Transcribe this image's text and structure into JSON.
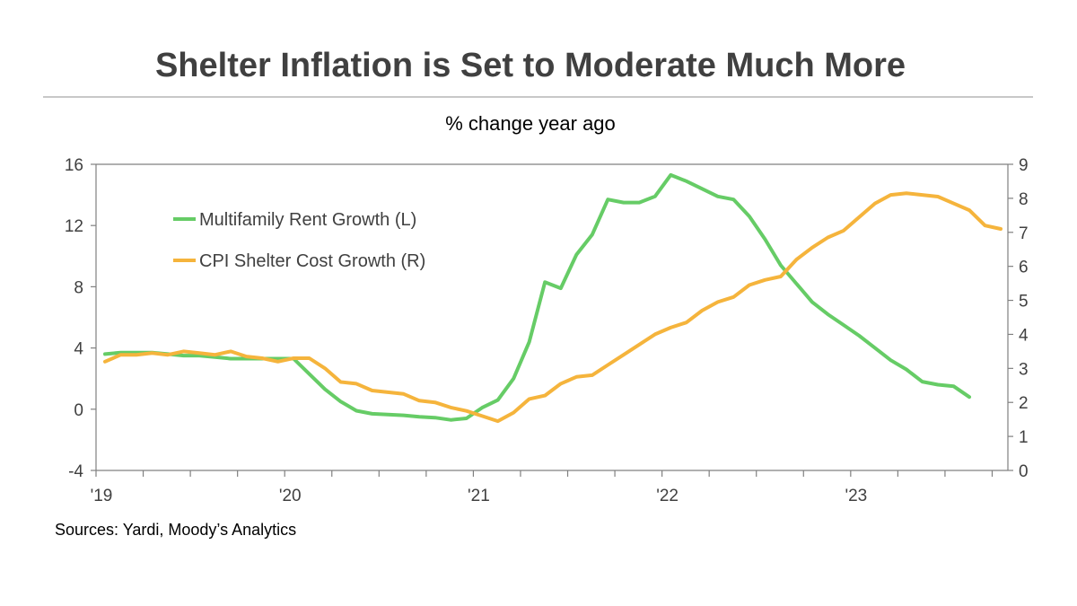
{
  "title": "Shelter Inflation is Set to Moderate Much More",
  "subtitle": "% change year ago",
  "source": "Sources: Yardi, Moody’s Analytics",
  "colors": {
    "rent": "#66cc66",
    "cpi": "#f5b43c",
    "axis": "#808080",
    "text": "#404040"
  },
  "chart_data": {
    "type": "line",
    "title": "Shelter Inflation is Set to Moderate Much More",
    "subtitle": "% change year ago",
    "x_start": "2019-01",
    "x_ticks": [
      "'19",
      "'20",
      "'21",
      "'22",
      "'23"
    ],
    "x_tick_months": [
      0,
      12,
      24,
      36,
      48
    ],
    "y_left": {
      "min": -4,
      "max": 16,
      "ticks": [
        -4,
        0,
        4,
        8,
        12,
        16
      ]
    },
    "y_right": {
      "min": 0,
      "max": 9,
      "ticks": [
        0,
        1,
        2,
        3,
        4,
        5,
        6,
        7,
        8,
        9
      ]
    },
    "legend": {
      "placement": "top-left"
    },
    "series": [
      {
        "name": "Multifamily Rent Growth (L)",
        "axis": "left",
        "values": [
          3.6,
          3.7,
          3.7,
          3.7,
          3.6,
          3.5,
          3.5,
          3.4,
          3.3,
          3.3,
          3.3,
          3.3,
          3.3,
          2.3,
          1.3,
          0.5,
          -0.1,
          -0.3,
          -0.35,
          -0.4,
          -0.5,
          -0.55,
          -0.7,
          -0.6,
          0.1,
          0.6,
          2.0,
          4.4,
          8.3,
          7.9,
          10.1,
          11.4,
          13.7,
          13.5,
          13.5,
          13.9,
          15.3,
          14.9,
          14.4,
          13.9,
          13.7,
          12.6,
          11.1,
          9.4,
          8.2,
          7.0,
          6.2,
          5.5,
          4.8,
          4.0,
          3.2,
          2.6,
          1.8,
          1.6,
          1.5,
          0.8
        ]
      },
      {
        "name": "CPI Shelter Cost Growth (R)",
        "axis": "right",
        "values": [
          3.2,
          3.4,
          3.4,
          3.45,
          3.4,
          3.5,
          3.45,
          3.4,
          3.5,
          3.35,
          3.3,
          3.2,
          3.3,
          3.3,
          3.0,
          2.6,
          2.55,
          2.35,
          2.3,
          2.25,
          2.05,
          2.0,
          1.85,
          1.75,
          1.6,
          1.45,
          1.7,
          2.1,
          2.2,
          2.55,
          2.75,
          2.8,
          3.1,
          3.4,
          3.7,
          4.0,
          4.2,
          4.35,
          4.7,
          4.95,
          5.1,
          5.45,
          5.6,
          5.7,
          6.2,
          6.55,
          6.85,
          7.05,
          7.45,
          7.85,
          8.1,
          8.15,
          8.1,
          8.05,
          7.85,
          7.65,
          7.2,
          7.1
        ]
      }
    ]
  }
}
